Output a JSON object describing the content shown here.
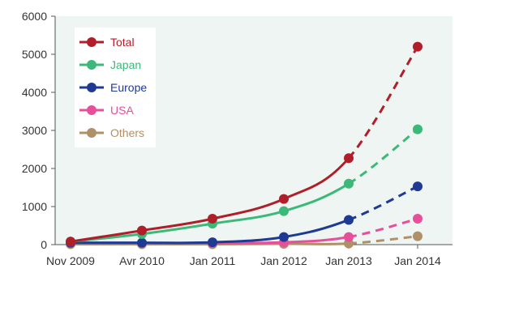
{
  "chart_data": {
    "type": "line",
    "title": "",
    "xlabel": "",
    "ylabel": "",
    "ylim": [
      0,
      6000
    ],
    "yticks": [
      0,
      1000,
      2000,
      3000,
      4000,
      5000,
      6000
    ],
    "categories": [
      "Nov 2009",
      "Avr 2010",
      "Jan 2011",
      "Jan 2012",
      "Jan 2013",
      "Jan 2014"
    ],
    "grid": false,
    "legend_position": "top-left",
    "plot_background": "#eef5f2",
    "series": [
      {
        "name": "Total",
        "color": "#b01e2a",
        "values": [
          80,
          370,
          680,
          1200,
          2270,
          5200
        ],
        "dashed_from_index": 4
      },
      {
        "name": "Japan",
        "color": "#3cb878",
        "values": [
          80,
          280,
          550,
          880,
          1600,
          3030
        ],
        "dashed_from_index": 4
      },
      {
        "name": "Europe",
        "color": "#1f3a93",
        "values": [
          50,
          50,
          60,
          200,
          650,
          1530
        ],
        "dashed_from_index": 4
      },
      {
        "name": "USA",
        "color": "#e6509a",
        "values": [
          40,
          40,
          40,
          60,
          200,
          680
        ],
        "dashed_from_index": 4
      },
      {
        "name": "Others",
        "color": "#b09068",
        "values": [
          10,
          10,
          10,
          20,
          30,
          220
        ],
        "dashed_from_index": 4
      }
    ]
  }
}
